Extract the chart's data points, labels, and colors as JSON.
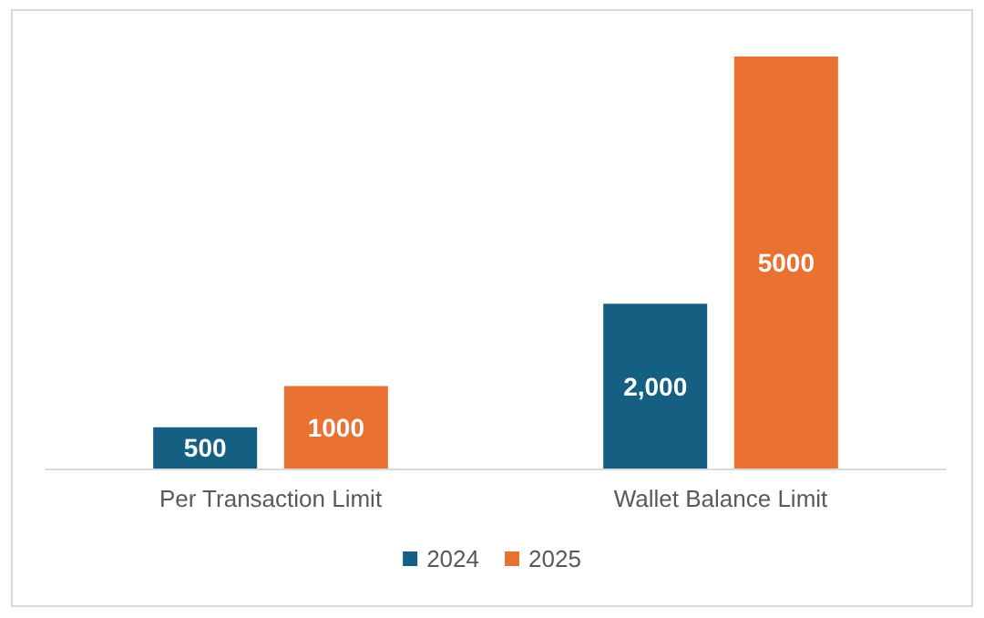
{
  "chart_data": {
    "type": "bar",
    "categories": [
      "Per Transaction Limit",
      "Wallet Balance Limit"
    ],
    "series": [
      {
        "name": "2024",
        "color": "#156082",
        "values": [
          500,
          2000
        ],
        "value_labels": [
          "500",
          "2,000"
        ]
      },
      {
        "name": "2025",
        "color": "#e97132",
        "values": [
          1000,
          5000
        ],
        "value_labels": [
          "1000",
          "5000"
        ]
      }
    ],
    "legend": "bottom"
  }
}
